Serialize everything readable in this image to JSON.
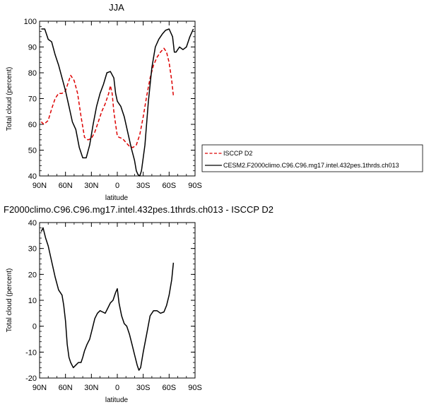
{
  "chart_data": [
    {
      "type": "line",
      "title": "JJA",
      "xlabel": "latitude",
      "ylabel": "Total cloud (percent)",
      "xlim": [
        -90,
        90
      ],
      "ylim": [
        40,
        100
      ],
      "xticks": [
        -90,
        -60,
        -30,
        0,
        30,
        60,
        90
      ],
      "xtick_labels": [
        "90N",
        "60N",
        "30N",
        "0",
        "30S",
        "60S",
        "90S"
      ],
      "yticks": [
        40,
        50,
        60,
        70,
        80,
        90,
        100
      ],
      "ytick_labels": [
        "40",
        "50",
        "60",
        "70",
        "80",
        "90",
        "100"
      ],
      "legend_position": "right",
      "series": [
        {
          "name": "ISCCP D2",
          "color": "#dd0000",
          "dash": "dashed",
          "x": [
            -88,
            -85,
            -80,
            -76,
            -72,
            -68,
            -64,
            -60,
            -57,
            -54,
            -50,
            -46,
            -42,
            -38,
            -34,
            -30,
            -26,
            -22,
            -18,
            -14,
            -10,
            -8,
            -6,
            -4,
            -2,
            0,
            2,
            6,
            10,
            14,
            18,
            22,
            26,
            30,
            34,
            38,
            42,
            46,
            50,
            54,
            57,
            60,
            63,
            65
          ],
          "y": [
            61,
            60,
            61.5,
            66,
            70,
            72,
            72,
            73,
            76,
            79,
            77,
            72,
            63,
            55,
            54,
            54.5,
            57,
            61,
            65,
            68,
            72,
            75,
            72,
            65,
            60,
            55.5,
            55,
            54.5,
            53,
            51.5,
            51,
            52,
            56,
            63,
            71,
            78,
            83,
            86,
            88,
            89.5,
            88,
            84,
            77,
            71
          ]
        },
        {
          "name": "CESM2.F2000climo.C96.C96.mg17.intel.432pes.1thrds.ch013",
          "color": "#000000",
          "dash": "solid",
          "x": [
            -88,
            -84,
            -80,
            -76,
            -72,
            -68,
            -64,
            -60,
            -56,
            -52,
            -48,
            -44,
            -40,
            -36,
            -32,
            -28,
            -24,
            -20,
            -16,
            -12,
            -8,
            -4,
            -2,
            0,
            2,
            4,
            8,
            12,
            16,
            20,
            22,
            24,
            26,
            28,
            32,
            36,
            40,
            44,
            48,
            52,
            56,
            60,
            64,
            66,
            68,
            72,
            76,
            80,
            84,
            88
          ],
          "y": [
            97,
            97,
            93,
            92,
            87,
            83,
            78,
            73,
            67,
            61,
            58,
            51,
            47,
            47,
            52,
            60,
            67,
            72,
            75.5,
            80,
            80.5,
            78,
            72,
            69,
            68,
            67,
            63,
            57,
            51,
            46,
            42,
            40.5,
            40,
            42,
            52,
            69,
            82,
            90,
            93,
            95,
            96.5,
            97,
            94,
            88,
            88,
            90,
            89,
            90,
            94,
            97
          ]
        }
      ]
    },
    {
      "type": "line",
      "title": "F2000climo.C96.C96.mg17.intel.432pes.1thrds.ch013 - ISCCP D2",
      "xlabel": "latitude",
      "ylabel": "Total cloud (percent)",
      "xlim": [
        -90,
        90
      ],
      "ylim": [
        -20,
        40
      ],
      "xticks": [
        -90,
        -60,
        -30,
        0,
        30,
        60,
        90
      ],
      "xtick_labels": [
        "90N",
        "60N",
        "30N",
        "0",
        "30S",
        "60S",
        "90S"
      ],
      "yticks": [
        -20,
        -10,
        0,
        10,
        20,
        30,
        40
      ],
      "ytick_labels": [
        "-20",
        "-10",
        "0",
        "10",
        "20",
        "30",
        "40"
      ],
      "series": [
        {
          "color": "#000000",
          "dash": "solid",
          "x": [
            -88,
            -86,
            -83,
            -80,
            -76,
            -72,
            -68,
            -64,
            -62,
            -60,
            -58,
            -56,
            -54,
            -51,
            -48,
            -45,
            -42,
            -40,
            -38,
            -35,
            -32,
            -29,
            -26,
            -23,
            -20,
            -17,
            -14,
            -11,
            -8,
            -5,
            -2,
            0,
            2,
            5,
            8,
            11,
            14,
            17,
            20,
            23,
            25,
            27,
            30,
            34,
            38,
            42,
            46,
            50,
            54,
            57,
            60,
            63,
            65
          ],
          "y": [
            36.5,
            38,
            34,
            31,
            25,
            19,
            14,
            12,
            8,
            2,
            -7,
            -12,
            -14,
            -16,
            -15,
            -14,
            -14,
            -12,
            -9.5,
            -7,
            -5,
            -1,
            3,
            5,
            6,
            5.5,
            5,
            7,
            9,
            10,
            13,
            14.5,
            9,
            4,
            1,
            0,
            -3,
            -7,
            -11,
            -15,
            -17,
            -16,
            -10,
            -3,
            4,
            6,
            6,
            5,
            5.5,
            8,
            12,
            18,
            24.5
          ]
        }
      ]
    }
  ]
}
